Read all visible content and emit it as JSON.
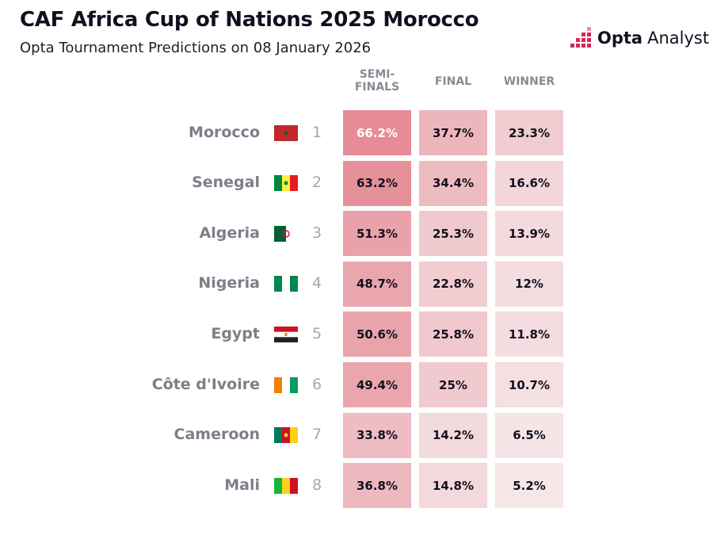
{
  "header": {
    "title": "CAF Africa Cup of Nations 2025 Morocco",
    "subtitle": "Opta Tournament Predictions on 08 January 2026"
  },
  "logo": {
    "brand": "Opta",
    "product": "Analyst"
  },
  "table": {
    "columns": [
      [
        "SEMI-",
        "FINALS"
      ],
      [
        "FINAL"
      ],
      [
        "WINNER"
      ]
    ],
    "rows": [
      {
        "team": "Morocco",
        "rank": 1,
        "cells": [
          "66.2%",
          "37.7%",
          "23.3%"
        ]
      },
      {
        "team": "Senegal",
        "rank": 2,
        "cells": [
          "63.2%",
          "34.4%",
          "16.6%"
        ]
      },
      {
        "team": "Algeria",
        "rank": 3,
        "cells": [
          "51.3%",
          "25.3%",
          "13.9%"
        ]
      },
      {
        "team": "Nigeria",
        "rank": 4,
        "cells": [
          "48.7%",
          "22.8%",
          "12%"
        ]
      },
      {
        "team": "Egypt",
        "rank": 5,
        "cells": [
          "50.6%",
          "25.8%",
          "11.8%"
        ]
      },
      {
        "team": "Côte d'Ivoire",
        "rank": 6,
        "cells": [
          "49.4%",
          "25%",
          "10.7%"
        ]
      },
      {
        "team": "Cameroon",
        "rank": 7,
        "cells": [
          "33.8%",
          "14.2%",
          "6.5%"
        ]
      },
      {
        "team": "Mali",
        "rank": 8,
        "cells": [
          "36.8%",
          "14.8%",
          "5.2%"
        ]
      }
    ]
  }
}
